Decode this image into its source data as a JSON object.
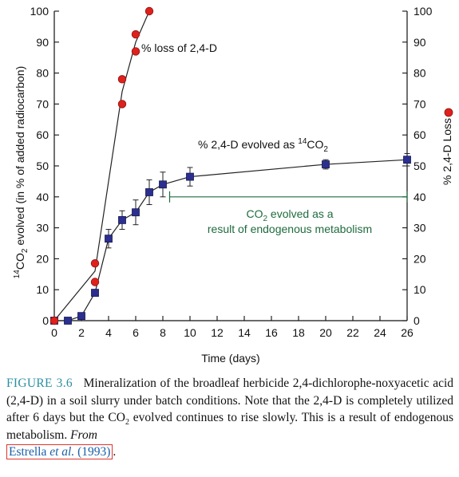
{
  "chart_data": {
    "type": "line",
    "x_axis": {
      "label": "Time (days)",
      "lim": [
        0,
        26
      ],
      "ticks": [
        0,
        2,
        4,
        6,
        8,
        10,
        12,
        14,
        16,
        18,
        20,
        22,
        24,
        26
      ]
    },
    "y_axis_left": {
      "label": "CO2 evolved (in % of added radiocarbon)",
      "label_superscript": "14",
      "lim": [
        0,
        100
      ],
      "ticks": [
        0,
        10,
        20,
        30,
        40,
        50,
        60,
        70,
        80,
        90,
        100
      ]
    },
    "y_axis_right": {
      "label": "% 2,4-D Loss",
      "lim": [
        0,
        100
      ],
      "ticks": [
        0,
        10,
        20,
        30,
        40,
        50,
        60,
        70,
        80,
        90,
        100
      ]
    },
    "series": [
      {
        "name": "% loss of 2,4-D",
        "marker": "circle",
        "color": "#e0201c",
        "points": [
          {
            "x": 0,
            "y": 0
          },
          {
            "x": 3,
            "y": 12.5
          },
          {
            "x": 3,
            "y": 18.5
          },
          {
            "x": 5,
            "y": 70
          },
          {
            "x": 5,
            "y": 78
          },
          {
            "x": 6,
            "y": 87
          },
          {
            "x": 6,
            "y": 92.5
          },
          {
            "x": 7,
            "y": 100
          }
        ],
        "line": [
          {
            "x": 0,
            "y": 0
          },
          {
            "x": 3,
            "y": 16
          },
          {
            "x": 5,
            "y": 74
          },
          {
            "x": 6,
            "y": 90
          },
          {
            "x": 7,
            "y": 100
          }
        ]
      },
      {
        "name": "% 2,4-D evolved as 14CO2",
        "marker": "square",
        "color": "#2b2f8f",
        "points": [
          {
            "x": 0,
            "y": 0,
            "err": 0
          },
          {
            "x": 1,
            "y": 0,
            "err": 0
          },
          {
            "x": 2,
            "y": 1.5,
            "err": 0
          },
          {
            "x": 3,
            "y": 9,
            "err": 0
          },
          {
            "x": 4,
            "y": 26.5,
            "err": 3
          },
          {
            "x": 5,
            "y": 32.5,
            "err": 3
          },
          {
            "x": 6,
            "y": 35,
            "err": 4
          },
          {
            "x": 7,
            "y": 41.5,
            "err": 4
          },
          {
            "x": 8,
            "y": 44,
            "err": 4
          },
          {
            "x": 10,
            "y": 46.5,
            "err": 3
          },
          {
            "x": 20,
            "y": 50.5,
            "err": 1.5
          },
          {
            "x": 26,
            "y": 52,
            "err": 2
          }
        ]
      }
    ],
    "annotations": {
      "loss_label": "% loss of 2,4-D",
      "evolved_label_prefix": "% 2,4-D evolved as ",
      "evolved_label_sup": "14",
      "evolved_label_main": "CO",
      "evolved_label_sub": "2",
      "bracket": {
        "x_start": 8.5,
        "x_end": 26,
        "y": 40
      },
      "bracket_line1_main": "CO",
      "bracket_line1_sub": "2",
      "bracket_line1_rest": " evolved as a",
      "bracket_line2": "result of endogenous metabolism"
    }
  },
  "caption": {
    "label": "FIGURE 3.6",
    "text_1": "Mineralization of the broadleaf herbicide 2,4-dichlorophe-noxyacetic acid (2,4-D) in a soil slurry under batch conditions. Note that the 2,4-D is completely utilized after 6 days but the CO",
    "text_sub": "2",
    "text_2": " evolved continues to rise slowly. This is a result of endogenous metabolism. ",
    "from": "From",
    "ref_author": "Estrella ",
    "ref_etal": "et al.",
    "ref_year": " (1993)",
    "end": "."
  }
}
